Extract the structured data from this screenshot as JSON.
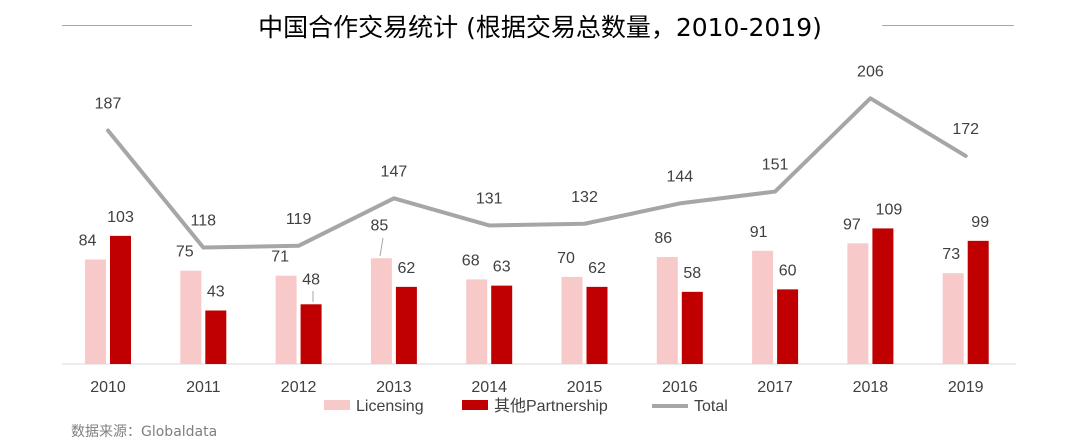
{
  "chart_data": {
    "type": "bar",
    "title": "中国合作交易统计 (根据交易总数量，2010-2019)",
    "categories": [
      "2010",
      "2011",
      "2012",
      "2013",
      "2014",
      "2015",
      "2016",
      "2017",
      "2018",
      "2019"
    ],
    "series": [
      {
        "name": "Licensing",
        "kind": "bar",
        "color": "#f8c9c9",
        "values": [
          84,
          75,
          71,
          85,
          68,
          70,
          86,
          91,
          97,
          73
        ]
      },
      {
        "name": "其他Partnership",
        "kind": "bar",
        "color": "#c00000",
        "values": [
          103,
          43,
          48,
          62,
          63,
          62,
          58,
          60,
          109,
          99
        ]
      },
      {
        "name": "Total",
        "kind": "line",
        "color": "#a6a6a6",
        "values": [
          187,
          118,
          119,
          147,
          131,
          132,
          144,
          151,
          206,
          172
        ]
      }
    ],
    "legend_position": "bottom",
    "grid": false
  },
  "source": "数据来源：Globaldata"
}
